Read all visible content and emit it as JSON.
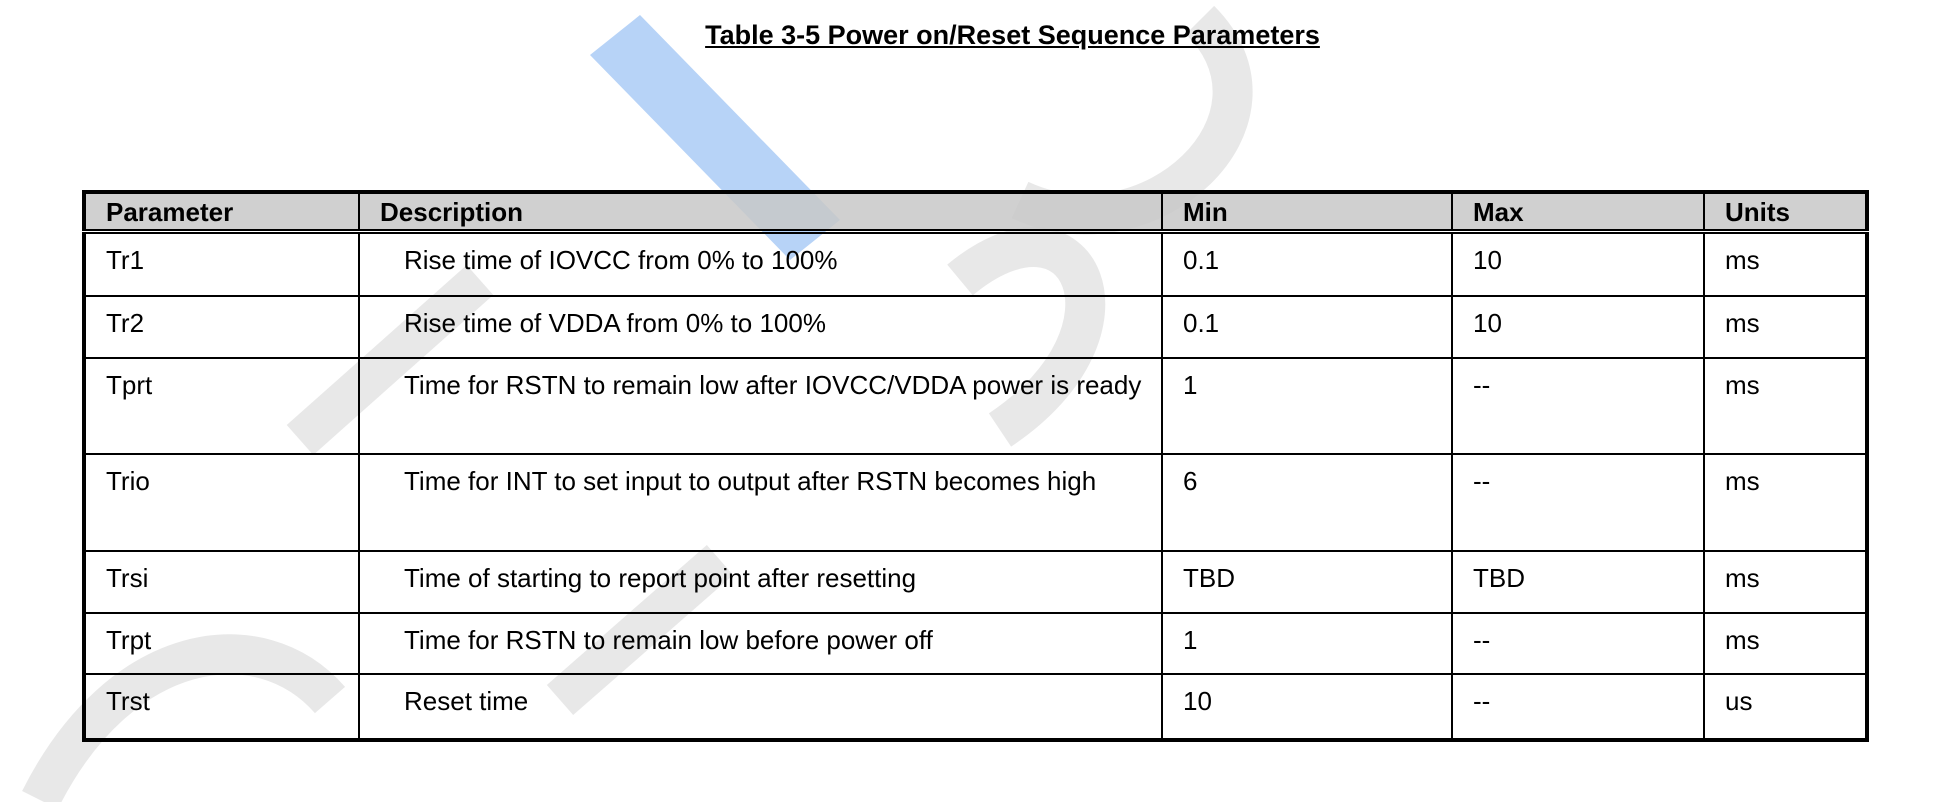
{
  "title": "Table 3-5 Power on/Reset Sequence Parameters",
  "table": {
    "header": [
      "Parameter",
      "Description",
      "Min",
      "Max",
      "Units"
    ],
    "rows": [
      [
        "Tr1",
        "Rise time of IOVCC from 0% to 100%",
        "0.1",
        "10",
        "ms"
      ],
      [
        "Tr2",
        "Rise time of VDDA from 0% to 100%",
        "0.1",
        "10",
        "ms"
      ],
      [
        "Tprt",
        "Time for RSTN to remain low after IOVCC/VDDA power is ready",
        "1",
        "--",
        "ms"
      ],
      [
        "Trio",
        "Time for INT to set input to output after RSTN becomes high",
        "6",
        "--",
        "ms"
      ],
      [
        "Trsi",
        "Time of starting to report point after resetting",
        "TBD",
        "TBD",
        "ms"
      ],
      [
        "Trpt",
        "Time for RSTN to remain low before power off",
        "1",
        "--",
        "ms"
      ],
      [
        "Trst",
        "Reset time",
        "10",
        "--",
        "us"
      ]
    ]
  }
}
